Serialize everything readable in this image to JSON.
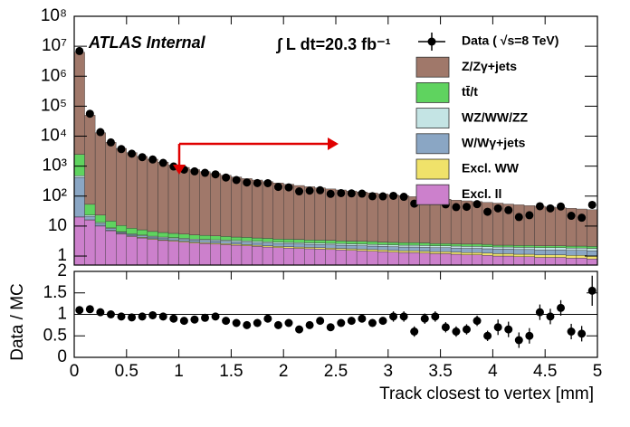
{
  "chart_data": [
    {
      "type": "histogram",
      "annotations": [
        "ATLAS Internal",
        "∫ L dt=20.3 fb⁻¹"
      ],
      "bins": [
        0,
        0.1,
        0.2,
        0.3,
        0.4,
        0.5,
        0.6,
        0.7,
        0.8,
        0.9,
        1.0,
        1.1,
        1.2,
        1.3,
        1.4,
        1.5,
        1.6,
        1.7,
        1.8,
        1.9,
        2.0,
        2.1,
        2.2,
        2.3,
        2.4,
        2.5,
        2.6,
        2.7,
        2.8,
        2.9,
        3.0,
        3.1,
        3.2,
        3.3,
        3.4,
        3.5,
        3.6,
        3.7,
        3.8,
        3.9,
        4.0,
        4.1,
        4.2,
        4.3,
        4.4,
        4.5,
        4.6,
        4.7,
        4.8,
        4.9,
        5.0
      ],
      "xlim": [
        0,
        5
      ],
      "xticks": [
        0,
        0.5,
        1,
        1.5,
        2,
        2.5,
        3,
        3.5,
        4,
        4.5,
        5
      ],
      "log_y": true,
      "ylim": [
        0.5,
        100000000
      ],
      "yticks": [
        1,
        10,
        {
          "value": 100,
          "label": "10²"
        },
        {
          "value": 1000,
          "label": "10³"
        },
        {
          "value": 10000,
          "label": "10⁴"
        },
        {
          "value": 100000,
          "label": "10⁵"
        },
        {
          "value": 1000000,
          "label": "10⁶"
        },
        {
          "value": 10000000,
          "label": "10⁷"
        },
        {
          "value": 100000000,
          "label": "10⁸"
        }
      ],
      "series": [
        {
          "name": "Data ( √s=8 TeV)",
          "style": "points",
          "color": "#000000",
          "values": [
            6930000,
            56000,
            13650,
            6200,
            3705,
            2604,
            1995,
            1666,
            1283,
            972,
            765,
            669,
            598,
            532,
            417,
            344,
            285,
            272,
            270,
            203,
            196,
            144,
            152,
            157,
            119,
            126,
            123,
            121,
            99,
            98,
            102,
            95,
            56,
            78,
            77,
            53,
            43,
            44,
            54,
            30,
            39,
            34,
            20,
            23,
            46,
            39,
            45,
            22,
            19,
            51
          ]
        },
        {
          "name": "Z/Zγ+jets",
          "color": "#a0786a",
          "values": [
            6300000,
            50000,
            13000,
            6200,
            3900,
            2800,
            2100,
            1700,
            1350,
            1080,
            900,
            760,
            650,
            560,
            490,
            430,
            380,
            340,
            300,
            270,
            245,
            222,
            202,
            185,
            170,
            157,
            145,
            134,
            124,
            115,
            107,
            100,
            93,
            87,
            81,
            76,
            71,
            67,
            63,
            59,
            56,
            52,
            49,
            46,
            44,
            41,
            39,
            37,
            35,
            33
          ]
        },
        {
          "name": "tt̄/t",
          "color": "#5fd35f",
          "values": [
            2000,
            30,
            10,
            6,
            4,
            3,
            2.5,
            2,
            1.8,
            1.6,
            1.5,
            1.4,
            1.3,
            1.2,
            1.1,
            1,
            1,
            0.9,
            0.9,
            0.8,
            0.8,
            0.8,
            0.7,
            0.7,
            0.7,
            0.6,
            0.6,
            0.6,
            0.6,
            0.5,
            0.5,
            0.5,
            0.5,
            0.5,
            0.4,
            0.4,
            0.4,
            0.4,
            0.4,
            0.4,
            0.3,
            0.3,
            0.3,
            0.3,
            0.3,
            0.3,
            0.3,
            0.3,
            0.3,
            0.3
          ]
        },
        {
          "name": "WZ/WW/ZZ",
          "color": "#c4e4e4",
          "values": [
            60,
            2,
            1,
            0.5,
            0.3,
            0.3,
            0.3,
            0.3,
            0.3,
            0.3,
            0.3,
            0.3,
            0.3,
            0.3,
            0.3,
            0.3,
            0.3,
            0.3,
            0.3,
            0.3,
            0.3,
            0.3,
            0.3,
            0.3,
            0.3,
            0.3,
            0.3,
            0.3,
            0.3,
            0.3,
            0.3,
            0.3,
            0.3,
            0.3,
            0.3,
            0.3,
            0.3,
            0.3,
            0.3,
            0.3,
            0.3,
            0.3,
            0.3,
            0.3,
            0.3,
            0.3,
            0.3,
            0.3,
            0.3,
            0.3
          ]
        },
        {
          "name": "W/Wγ+jets",
          "color": "#8aa6c4",
          "values": [
            400,
            5,
            2,
            1,
            0.5,
            0.5,
            0.5,
            0.5,
            0.5,
            0.5,
            0.5,
            0.5,
            0.5,
            0.5,
            0.5,
            0.5,
            0.5,
            0.5,
            0.5,
            0.5,
            0.5,
            0.5,
            0.5,
            0.5,
            0.5,
            0.5,
            0.5,
            0.5,
            0.5,
            0.5,
            0.5,
            0.5,
            0.5,
            0.5,
            0.5,
            0.5,
            0.5,
            0.5,
            0.5,
            0.5,
            0.5,
            0.5,
            0.5,
            0.5,
            0.5,
            0.5,
            0.5,
            0.5,
            0.5,
            0.5
          ]
        },
        {
          "name": "Excl. WW",
          "color": "#f0e26a",
          "values": [
            0.2,
            0.2,
            0.2,
            0.2,
            0.2,
            0.2,
            0.2,
            0.2,
            0.2,
            0.2,
            0.2,
            0.2,
            0.2,
            0.2,
            0.2,
            0.2,
            0.2,
            0.2,
            0.2,
            0.2,
            0.2,
            0.2,
            0.2,
            0.2,
            0.2,
            0.2,
            0.2,
            0.2,
            0.2,
            0.2,
            0.2,
            0.2,
            0.2,
            0.2,
            0.2,
            0.2,
            0.2,
            0.2,
            0.2,
            0.2,
            0.2,
            0.2,
            0.2,
            0.2,
            0.2,
            0.2,
            0.2,
            0.2,
            0.2,
            0.2
          ]
        },
        {
          "name": "Excl. ll",
          "color": "#cc80cc",
          "values": [
            20,
            16,
            10,
            7,
            5.5,
            4.5,
            4,
            3.6,
            3.3,
            3.1,
            2.9,
            2.7,
            2.6,
            2.5,
            2.4,
            2.3,
            2.2,
            2.1,
            2.0,
            1.9,
            1.85,
            1.8,
            1.75,
            1.7,
            1.65,
            1.6,
            1.55,
            1.5,
            1.45,
            1.4,
            1.35,
            1.3,
            1.3,
            1.25,
            1.2,
            1.2,
            1.15,
            1.1,
            1.1,
            1.05,
            1.0,
            1.0,
            0.95,
            0.95,
            0.9,
            0.9,
            0.9,
            0.85,
            0.85,
            0.8
          ]
        }
      ]
    },
    {
      "type": "scatter",
      "xlabel": "Track closest to vertex [mm]",
      "ylabel": "Data / MC",
      "xlim": [
        0,
        5
      ],
      "xticks": [
        0,
        0.5,
        1,
        1.5,
        2,
        2.5,
        3,
        3.5,
        4,
        4.5,
        5
      ],
      "ylim": [
        0,
        2
      ],
      "yticks": [
        0,
        0.5,
        1,
        1.5,
        2
      ],
      "hline": 1,
      "x": [
        0.05,
        0.15,
        0.25,
        0.35,
        0.45,
        0.55,
        0.65,
        0.75,
        0.85,
        0.95,
        1.05,
        1.15,
        1.25,
        1.35,
        1.45,
        1.55,
        1.65,
        1.75,
        1.85,
        1.95,
        2.05,
        2.15,
        2.25,
        2.35,
        2.45,
        2.55,
        2.65,
        2.75,
        2.85,
        2.95,
        3.05,
        3.15,
        3.25,
        3.35,
        3.45,
        3.55,
        3.65,
        3.75,
        3.85,
        3.95,
        4.05,
        4.15,
        4.25,
        4.35,
        4.45,
        4.55,
        4.65,
        4.75,
        4.85,
        4.95
      ],
      "values": [
        1.1,
        1.12,
        1.05,
        1.0,
        0.95,
        0.93,
        0.95,
        0.98,
        0.95,
        0.9,
        0.85,
        0.88,
        0.92,
        0.95,
        0.85,
        0.8,
        0.75,
        0.8,
        0.9,
        0.75,
        0.8,
        0.65,
        0.75,
        0.85,
        0.7,
        0.8,
        0.85,
        0.9,
        0.8,
        0.85,
        0.95,
        0.95,
        0.6,
        0.9,
        0.95,
        0.7,
        0.6,
        0.65,
        0.85,
        0.5,
        0.7,
        0.65,
        0.4,
        0.5,
        1.05,
        0.95,
        1.15,
        0.6,
        0.55,
        1.55
      ],
      "errors": [
        0.03,
        0.03,
        0.03,
        0.03,
        0.03,
        0.03,
        0.03,
        0.03,
        0.03,
        0.03,
        0.05,
        0.05,
        0.05,
        0.05,
        0.05,
        0.05,
        0.05,
        0.05,
        0.05,
        0.05,
        0.08,
        0.08,
        0.08,
        0.08,
        0.08,
        0.08,
        0.08,
        0.08,
        0.08,
        0.08,
        0.12,
        0.12,
        0.12,
        0.12,
        0.12,
        0.12,
        0.12,
        0.12,
        0.12,
        0.12,
        0.18,
        0.18,
        0.18,
        0.18,
        0.18,
        0.18,
        0.18,
        0.18,
        0.18,
        0.35
      ]
    }
  ]
}
